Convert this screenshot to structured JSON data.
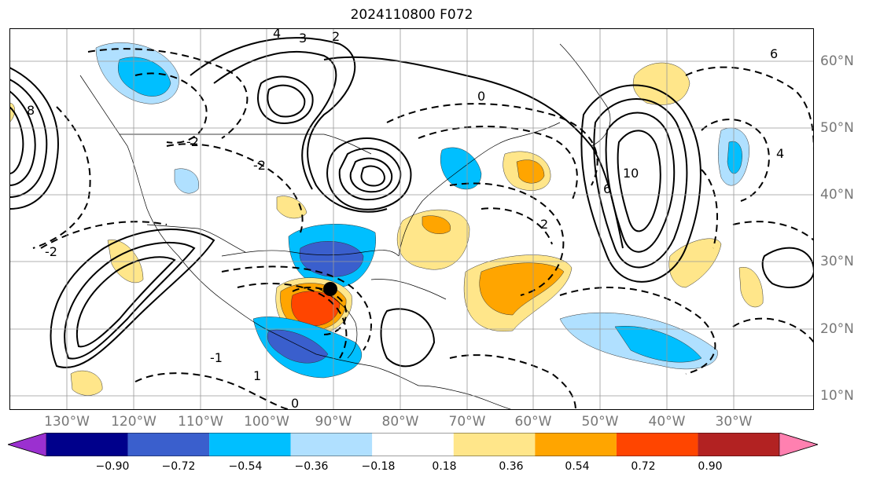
{
  "title": "2024110800 F072",
  "map": {
    "lon_labels": [
      "130°W",
      "120°W",
      "110°W",
      "100°W",
      "90°W",
      "80°W",
      "70°W",
      "60°W",
      "50°W",
      "40°W",
      "30°W"
    ],
    "lat_labels": [
      "60°N",
      "50°N",
      "40°N",
      "30°N",
      "20°N",
      "10°N"
    ],
    "contour_labels": [
      "4",
      "3",
      "2",
      "0",
      "6",
      "8",
      "10",
      "-2",
      "-1",
      "1",
      "0",
      "2",
      "6",
      "-2",
      "4",
      "-2"
    ],
    "storm_marker_icon": "storm-center-dot-icon"
  },
  "colorbar": {
    "tick_labels": [
      "−0.90",
      "−0.72",
      "−0.54",
      "−0.36",
      "−0.18",
      "0.18",
      "0.36",
      "0.54",
      "0.72",
      "0.90"
    ],
    "colors": [
      "#9b30d0",
      "#00008b",
      "#3a5fcd",
      "#00bfff",
      "#b0e0ff",
      "#ffffff",
      "#ffe68a",
      "#ffa500",
      "#ff4500",
      "#b22222",
      "#ff80b0"
    ]
  }
}
